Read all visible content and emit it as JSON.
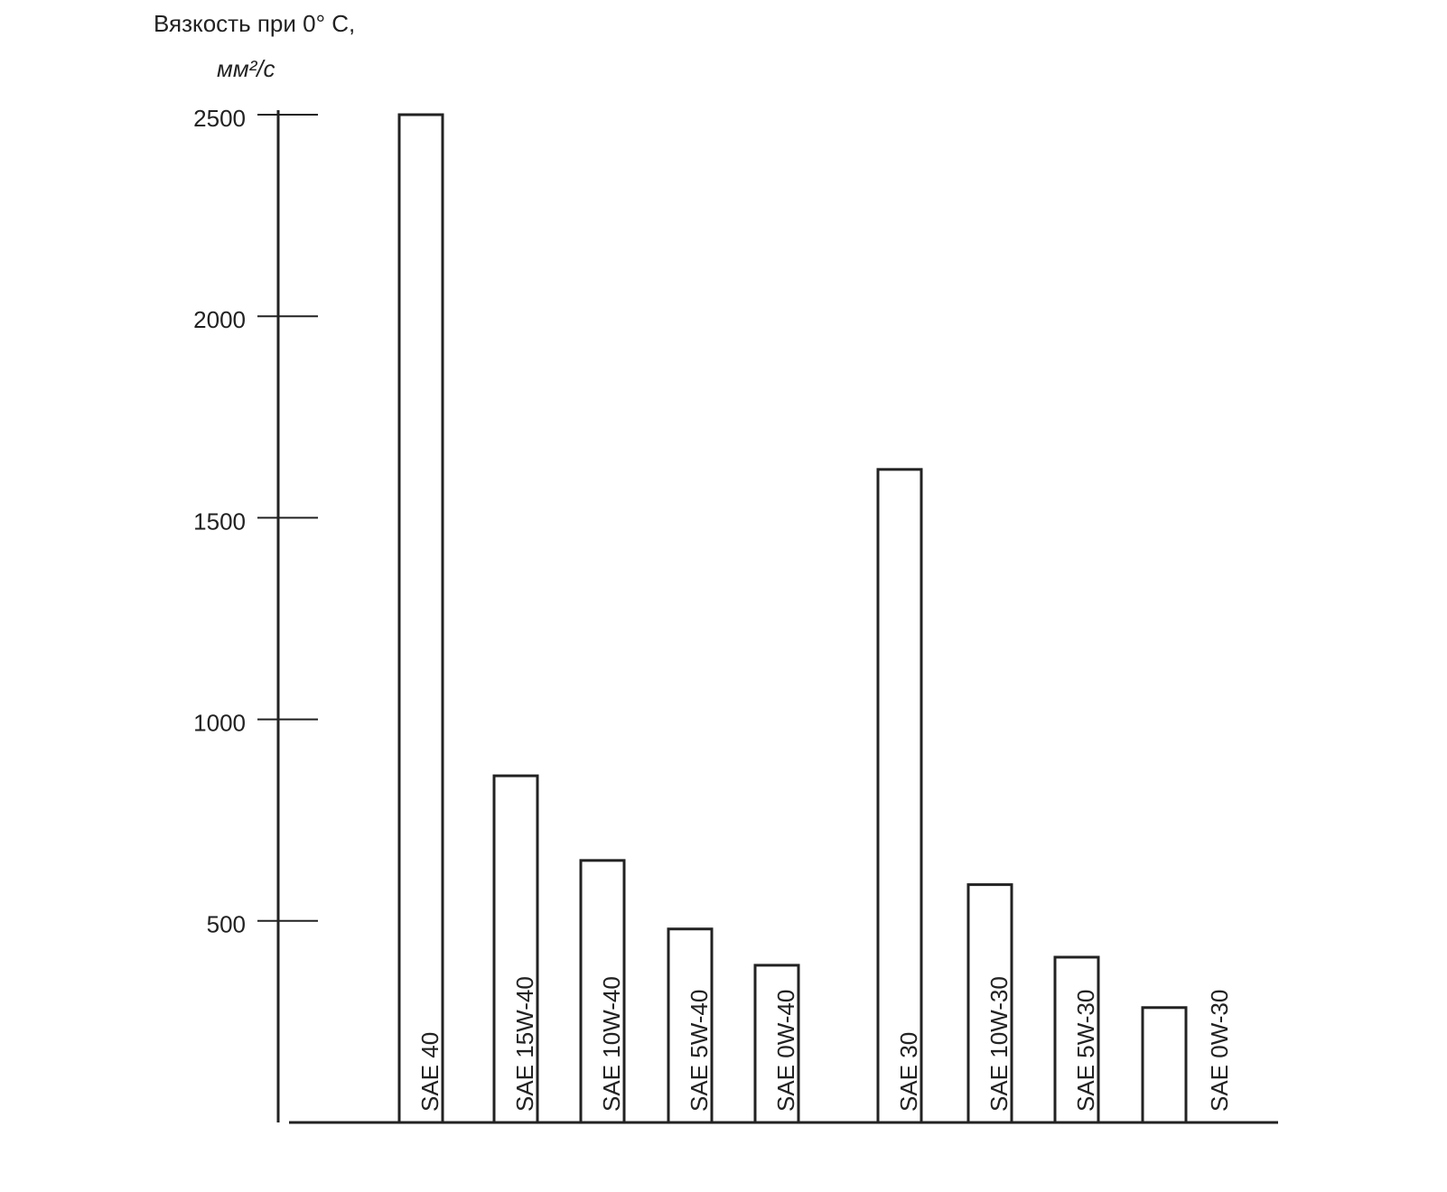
{
  "chart_data": {
    "type": "bar",
    "ylabel": [
      "Вязкость при 0° С,",
      "мм²/с"
    ],
    "categories": [
      "SAE 40",
      "SAE 15W-40",
      "SAE 10W-40",
      "SAE 5W-40",
      "SAE 0W-40",
      "SAE 30",
      "SAE 10W-30",
      "SAE 5W-30",
      "SAE 0W-30"
    ],
    "values": [
      2500,
      860,
      650,
      480,
      390,
      1620,
      590,
      410,
      285
    ],
    "color": "#ffffff",
    "ylim": [
      0,
      2500
    ],
    "yticks": [
      500,
      1000,
      1500,
      2000,
      2500
    ],
    "grid": false
  }
}
